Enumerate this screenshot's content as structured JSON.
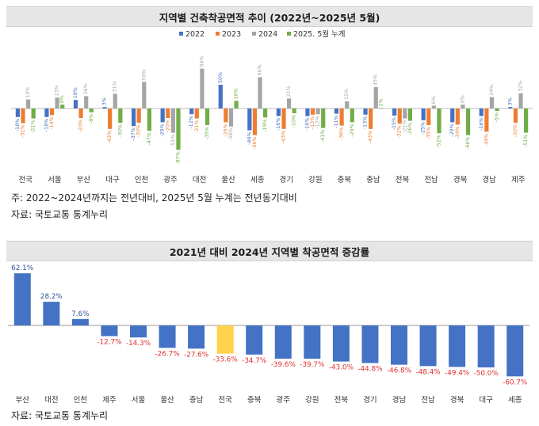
{
  "chart_data": [
    {
      "type": "bar",
      "title": "지역별 건축착공면적 추이 (2022년~2025년 5월)",
      "categories": [
        "전국",
        "서울",
        "부산",
        "대구",
        "인천",
        "광주",
        "대전",
        "울산",
        "세종",
        "경기",
        "강원",
        "충북",
        "충남",
        "전북",
        "전남",
        "경북",
        "경남",
        "제주"
      ],
      "series": [
        {
          "name": "2022",
          "color": "#4472c4",
          "values": [
            -18,
            -18,
            18,
            3,
            -37,
            -29,
            -12,
            50,
            -46,
            -16,
            -16,
            -11,
            -13,
            -15,
            -25,
            -29,
            -16,
            3
          ]
        },
        {
          "name": "2023",
          "color": "#ed7d31",
          "values": [
            -31,
            -14,
            -20,
            -43,
            -30,
            -20,
            -21,
            -29,
            -56,
            -43,
            -13,
            -36,
            -43,
            -32,
            -35,
            -34,
            -49,
            -30
          ]
        },
        {
          "name": "2024",
          "color": "#a5a5a5",
          "values": [
            19,
            23,
            26,
            31,
            56,
            -51,
            84,
            -38,
            66,
            21,
            -12,
            15,
            45,
            -21,
            6,
            8,
            24,
            32
          ]
        },
        {
          "name": "2025. 5월 누계",
          "color": "#70ad47",
          "values": [
            -21,
            8,
            -8,
            -30,
            -47,
            -87,
            -35,
            16,
            -19,
            -10,
            -41,
            -29,
            1,
            -26,
            -52,
            -56,
            -5,
            -51
          ]
        }
      ],
      "ylim": [
        -90,
        90
      ]
    },
    {
      "type": "bar",
      "title": "2021년 대비 2024년 지역별 착공면적 증감률",
      "categories": [
        "부산",
        "대전",
        "인천",
        "제주",
        "서울",
        "울산",
        "충남",
        "전국",
        "충북",
        "광주",
        "강원",
        "전북",
        "경기",
        "경남",
        "전남",
        "경북",
        "대구",
        "세종"
      ],
      "values": [
        62.1,
        28.2,
        7.6,
        -12.7,
        -14.3,
        -26.7,
        -27.6,
        -33.6,
        -34.7,
        -39.6,
        -39.7,
        -43.0,
        -44.8,
        -46.8,
        -48.4,
        -49.4,
        -50.0,
        -60.7
      ],
      "value_labels": [
        "62.1%",
        "28.2%",
        "7.6%",
        "-12.7%",
        "-14.3%",
        "-26.7%",
        "-27.6%",
        "-33.6%",
        "-34.7%",
        "-39.6%",
        "-39.7%",
        "-43.0%",
        "-44.8%",
        "-46.8%",
        "-48.4%",
        "-49.4%",
        "-50.0%",
        "-60.7%"
      ],
      "highlight": "전국",
      "bar_color": "#4472c4",
      "highlight_color": "#ffd24d",
      "positive_label_color": "#2f5597",
      "negative_label_color": "#e03030",
      "ylim": [
        -70,
        70
      ]
    }
  ],
  "notes": {
    "note1": "주: 2022~2024년까지는 전년대비, 2025년 5월 누계는 전년동기대비",
    "source1": "자료: 국토교통 통계누리",
    "source2": "자료: 국토교통 통계누리"
  }
}
